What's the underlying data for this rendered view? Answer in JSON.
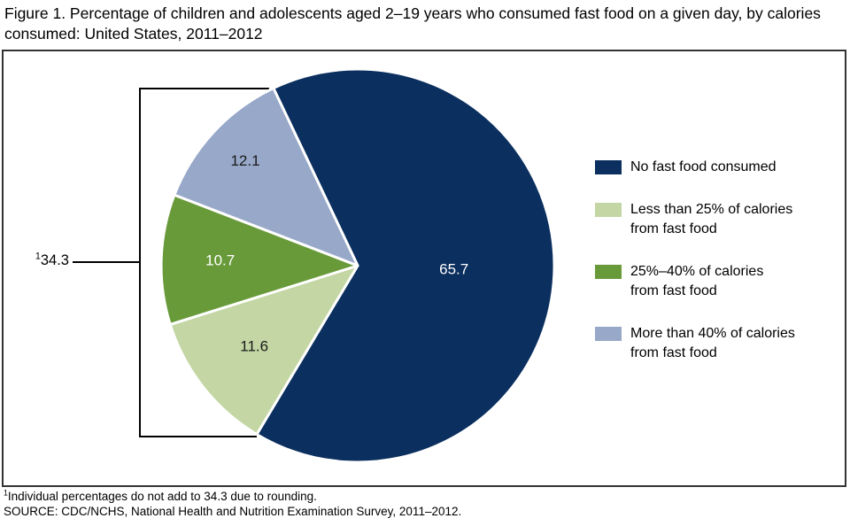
{
  "figure": {
    "title": "Figure 1. Percentage of children and adolescents aged 2–19 years who consumed fast food on a given day, by calories consumed: United States, 2011–2012",
    "group_label": {
      "marker": "1",
      "value": "34.3"
    },
    "footnotes": [
      {
        "marker": "1",
        "text": "Individual percentages do not add to 34.3 due to rounding."
      },
      {
        "text": "SOURCE: CDC/NCHS, National Health and Nutrition Examination Survey, 2011–2012."
      }
    ]
  },
  "legend": {
    "items": [
      {
        "color": "#0b2f5e",
        "lines": [
          "No fast food consumed"
        ]
      },
      {
        "color": "#c3d6a4",
        "lines": [
          "Less than 25% of calories",
          "from fast food"
        ]
      },
      {
        "color": "#699a3a",
        "lines": [
          "25%–40% of calories",
          "from fast food"
        ]
      },
      {
        "color": "#98a8c9",
        "lines": [
          "More than 40% of calories",
          "from fast food"
        ]
      }
    ]
  },
  "chart_data": {
    "type": "pie",
    "title": "Figure 1. Percentage of children and adolescents aged 2–19 years who consumed fast food on a given day, by calories consumed: United States, 2011–2012",
    "slices": [
      {
        "label": "No fast food consumed",
        "value": 65.7,
        "color": "#0b2f5e",
        "label_color": "#ffffff",
        "label_r": 0.49
      },
      {
        "label": "Less than 25% of calories from fast food",
        "value": 11.6,
        "color": "#c3d6a4",
        "label_color": "#1a1a1a",
        "label_r": 0.67
      },
      {
        "label": "25%–40% of calories from fast food",
        "value": 10.7,
        "color": "#699a3a",
        "label_color": "#ffffff",
        "label_r": 0.7
      },
      {
        "label": "More than 40% of calories from fast food",
        "value": 12.1,
        "color": "#98a8c9",
        "label_color": "#1a1a1a",
        "label_r": 0.78
      }
    ],
    "start_angle_deg": 115.4,
    "direction": "clockwise",
    "grouped_slices_total": {
      "value": 34.3,
      "footnote_marker": "1",
      "applies_to": [
        "Less than 25% of calories from fast food",
        "25%–40% of calories from fast food",
        "More than 40% of calories from fast food"
      ]
    },
    "legend_position": "right",
    "source": "CDC/NCHS, National Health and Nutrition Examination Survey, 2011–2012"
  }
}
